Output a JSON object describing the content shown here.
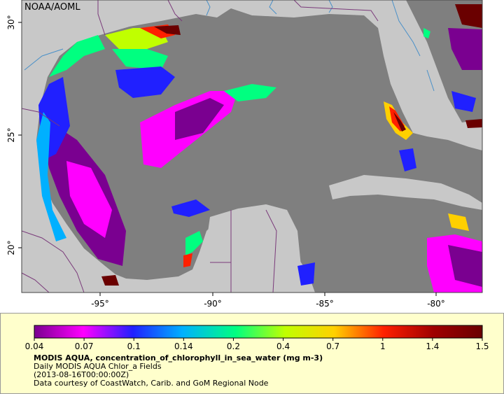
{
  "credit": "NOAA/AOML",
  "lon_ticks": [
    "-95°",
    "-90°",
    "-85°",
    "-80°"
  ],
  "lat_ticks": [
    "30°",
    "25°",
    "20°"
  ],
  "legend": {
    "title": "MODIS AQUA, concentration_of_chlorophyll_in_sea_water (mg m-3)",
    "line2": "Daily MODIS AQUA Chlor_a Fields",
    "line3": "(2013-08-16T00:00:00Z)",
    "line4": "Data courtesy of CoastWatch, Carib. and GoM Regional Node"
  },
  "colorbar": {
    "labels": [
      "0.04",
      "0.07",
      "0.1",
      "0.14",
      "0.2",
      "0.4",
      "0.7",
      "1",
      "1.4",
      "1.5"
    ],
    "colors": [
      "#7a0090",
      "#ff00ff",
      "#2020ff",
      "#00b0ff",
      "#00ff80",
      "#c0ff00",
      "#ffd000",
      "#ff2000",
      "#a00000",
      "#6a0000"
    ]
  },
  "colors": {
    "ocean": "#7f7f7f",
    "land": "#c8c8c8",
    "border": "#7a3a7a",
    "river": "#4a90c8"
  }
}
